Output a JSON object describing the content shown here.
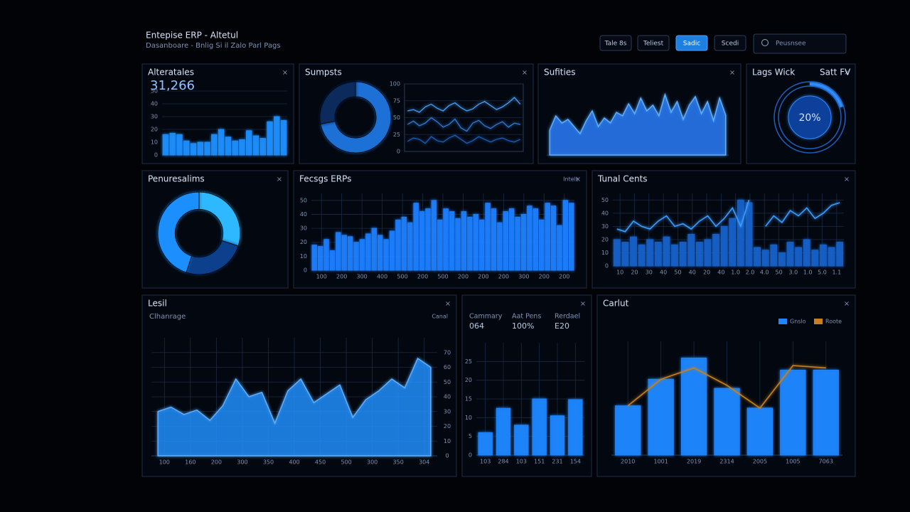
{
  "header": {
    "title": "Entepise ERP - Altetul",
    "subtitle": "Dasanboare - Bnlig Si il Zalo Parl Pags",
    "buttons": [
      "Tale 8s",
      "Teliest",
      "Sadic",
      "Scedi"
    ],
    "search": "Peusnsee"
  },
  "chart_data": [
    {
      "type": "bar",
      "title": "Alteratales",
      "kpi": "31,266",
      "color": "#1f8fff",
      "values": [
        16,
        17,
        16,
        11,
        9,
        10,
        10,
        16,
        20,
        14,
        11,
        12,
        19,
        15,
        13,
        26,
        30,
        27
      ],
      "ylim": [
        0,
        50
      ],
      "yticks": [
        0,
        10,
        20,
        30,
        40,
        50
      ],
      "grid": true
    },
    {
      "type": "pie",
      "title": "Sumpsts",
      "values": [
        72,
        28
      ],
      "colors": [
        "#1f6fd6",
        "#0b2a5c"
      ]
    },
    {
      "type": "line",
      "series": [
        {
          "color": "#4aa3ff",
          "values": [
            60,
            62,
            58,
            66,
            70,
            64,
            60,
            68,
            72,
            65,
            60,
            63,
            70,
            74,
            68,
            62,
            66,
            72,
            80,
            70
          ]
        },
        {
          "color": "#2f7fe0",
          "values": [
            40,
            45,
            38,
            42,
            50,
            44,
            36,
            40,
            48,
            35,
            30,
            42,
            46,
            38,
            34,
            40,
            44,
            36,
            42,
            40
          ]
        },
        {
          "color": "#1f5fbf",
          "values": [
            15,
            20,
            18,
            12,
            22,
            16,
            14,
            20,
            24,
            18,
            12,
            16,
            22,
            18,
            14,
            18,
            20,
            16,
            14,
            18
          ]
        }
      ],
      "ylim": [
        0,
        100
      ],
      "yticks": [
        0,
        25,
        50,
        75,
        100
      ],
      "grid": true
    },
    {
      "type": "area",
      "title": "Sufities",
      "color": "#2a7fff",
      "values": [
        35,
        55,
        45,
        50,
        40,
        30,
        48,
        62,
        40,
        52,
        45,
        60,
        55,
        72,
        58,
        80,
        62,
        70,
        55,
        85,
        60,
        75,
        50,
        70,
        82,
        58,
        75,
        48,
        80,
        56
      ],
      "ylim": [
        0,
        100
      ]
    },
    {
      "type": "gauge",
      "title": "Lags Wick",
      "subtitle": "Satt FV",
      "value": 20,
      "value_label": "20%",
      "color": "#2f8cff"
    },
    {
      "type": "pie",
      "title": "Penuresalims",
      "values": [
        30,
        25,
        45
      ],
      "colors": [
        "#2fb8ff",
        "#0b3f8c",
        "#1f8fff"
      ]
    },
    {
      "type": "bar",
      "title": "Fecsgs ERPs",
      "note": "Intelt",
      "color": "#1f7fff",
      "values": [
        18,
        17,
        22,
        14,
        27,
        25,
        24,
        20,
        22,
        26,
        30,
        25,
        22,
        28,
        36,
        38,
        34,
        48,
        42,
        44,
        50,
        36,
        44,
        42,
        37,
        42,
        38,
        40,
        36,
        48,
        44,
        34,
        42,
        44,
        38,
        40,
        46,
        44,
        36,
        48,
        46,
        32,
        50,
        48
      ],
      "ylim": [
        0,
        55
      ],
      "yticks": [
        0,
        10,
        20,
        30,
        40,
        50
      ],
      "x_labels": [
        "100",
        "200",
        "300",
        "400",
        "500",
        "200",
        "500",
        "200",
        "200",
        "200",
        "300",
        "200",
        "200"
      ],
      "grid": true
    },
    {
      "type": "combo",
      "title": "Tunal Cents",
      "series": [
        {
          "color": "#1760c8",
          "mark": "bar",
          "values": [
            20,
            18,
            22,
            16,
            20,
            18,
            22,
            16,
            18,
            24,
            18,
            20,
            24,
            30,
            36,
            50,
            48,
            14,
            12,
            16,
            10,
            18,
            14,
            20,
            12,
            16,
            14,
            18
          ]
        },
        {
          "color": "#3a9bff",
          "mark": "line",
          "values": [
            28,
            26,
            34,
            30,
            28,
            34,
            38,
            30,
            32,
            28,
            34,
            38,
            30,
            36,
            44,
            30,
            50,
            null,
            30,
            38,
            33,
            42,
            38,
            44,
            36,
            40,
            46,
            48
          ]
        }
      ],
      "ylim": [
        0,
        55
      ],
      "yticks": [
        0,
        10,
        20,
        30,
        40,
        50
      ],
      "x_labels": [
        "10",
        "20",
        "30",
        "40",
        "50",
        "40",
        "20",
        "40",
        "1.0",
        "2.0",
        "4.0",
        "50",
        "3.0",
        "1.0",
        "5.0",
        "1.1"
      ],
      "grid": true
    },
    {
      "type": "area",
      "title": "Lesil",
      "subtitle": "Clhanrage",
      "note": "Canal",
      "color": "#1f8fff",
      "values": [
        30,
        33,
        28,
        31,
        24,
        34,
        52,
        40,
        43,
        22,
        44,
        52,
        36,
        42,
        48,
        26,
        38,
        44,
        52,
        46,
        66,
        60
      ],
      "ylim": [
        0,
        80
      ],
      "yticks": [
        0,
        10,
        20,
        30,
        40,
        50,
        60,
        70
      ],
      "x_labels": [
        "100",
        "160",
        "200",
        "300",
        "350",
        "400",
        "450",
        "500",
        "300",
        "350",
        "304"
      ],
      "grid": true
    },
    {
      "type": "bar",
      "stats": [
        {
          "label": "Cammary",
          "value": "064"
        },
        {
          "label": "Aat Pens",
          "value": "100%"
        },
        {
          "label": "Rerdael",
          "value": "E20"
        }
      ],
      "color": "#1f86ff",
      "values": [
        6,
        12.5,
        8,
        15,
        10.5,
        14.8
      ],
      "ylim": [
        0,
        30
      ],
      "yticks": [
        0,
        5,
        10,
        15,
        20,
        25
      ],
      "x_labels": [
        "103",
        "284",
        "103",
        "151",
        "231",
        "154"
      ],
      "grid": true
    },
    {
      "type": "combo",
      "title": "Carlut",
      "series": [
        {
          "name": "Gnslo",
          "color": "#1f86ff",
          "mark": "bar",
          "values": [
            65,
            100,
            128,
            88,
            62,
            112,
            112
          ]
        },
        {
          "name": "Roote",
          "color": "#c8801e",
          "mark": "line",
          "values": [
            65,
            100,
            115,
            92,
            62,
            118,
            115
          ]
        }
      ],
      "ylim": [
        0,
        150
      ],
      "x_labels": [
        "2010",
        "1001",
        "2019",
        "2314",
        "2005",
        "1005",
        "7063"
      ],
      "grid": true
    }
  ]
}
